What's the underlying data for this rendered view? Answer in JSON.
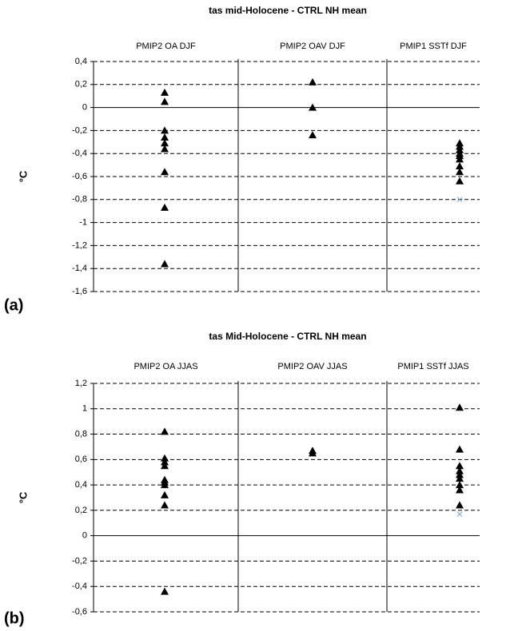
{
  "chart_data": [
    {
      "type": "strip",
      "title": "tas mid-Holocene - CTRL NH  mean",
      "panel_label": "(a)",
      "ylabel": "°C",
      "categories": [
        "PMIP2 OA DJF",
        "PMIP2 OAV DJF",
        "PMIP1 SSTf DJF"
      ],
      "series": [
        {
          "marker": "triangle",
          "color": "#000000",
          "values": [
            [
              0.13,
              0.05,
              -0.2,
              -0.26,
              -0.31,
              -0.36,
              -0.56,
              -0.87,
              -1.36
            ],
            [
              0.22,
              0.0,
              -0.24
            ],
            [
              -0.31,
              -0.34,
              -0.37,
              -0.4,
              -0.42,
              -0.45,
              -0.51,
              -0.56,
              -0.64
            ]
          ]
        },
        {
          "marker": "x",
          "color": "#6fa8dc",
          "values": [
            [],
            [],
            [
              -0.8
            ]
          ]
        }
      ],
      "ylim": [
        -1.6,
        0.4
      ],
      "yticks": [
        {
          "value": -1.6,
          "label": "-1,6"
        },
        {
          "value": -1.4,
          "label": "-1,4"
        },
        {
          "value": -1.2,
          "label": "-1,2"
        },
        -1,
        {
          "value": -0.8,
          "label": "-0,8"
        },
        {
          "value": -0.6,
          "label": "-0,6"
        },
        {
          "value": -0.4,
          "label": "-0,4"
        },
        {
          "value": -0.2,
          "label": "-0,2"
        },
        0,
        {
          "value": 0.2,
          "label": "0,2"
        },
        {
          "value": 0.4,
          "label": "0,4"
        }
      ],
      "grid": true
    },
    {
      "type": "strip",
      "title": "tas Mid-Holocene - CTRL NH mean",
      "panel_label": "(b)",
      "ylabel": "°C",
      "categories": [
        "PMIP2 OA JJAS",
        "PMIP2 OAV JJAS",
        "PMIP1 SSTf JJAS"
      ],
      "series": [
        {
          "marker": "triangle",
          "color": "#000000",
          "values": [
            [
              0.82,
              0.61,
              0.58,
              0.55,
              0.44,
              0.42,
              0.4,
              0.32,
              0.24,
              -0.44
            ],
            [
              0.67,
              0.65
            ],
            [
              1.01,
              0.68,
              0.55,
              0.51,
              0.48,
              0.45,
              0.4,
              0.36,
              0.24
            ]
          ]
        },
        {
          "marker": "x",
          "color": "#6fa8dc",
          "values": [
            [],
            [],
            [
              0.17
            ]
          ]
        }
      ],
      "ylim": [
        -0.6,
        1.2
      ],
      "yticks": [
        {
          "value": -0.6,
          "label": "-0,6"
        },
        {
          "value": -0.4,
          "label": "-0,4"
        },
        {
          "value": -0.2,
          "label": "-0,2"
        },
        0,
        {
          "value": 0.2,
          "label": "0,2"
        },
        {
          "value": 0.4,
          "label": "0,4"
        },
        {
          "value": 0.6,
          "label": "0,6"
        },
        {
          "value": 0.8,
          "label": "0,8"
        },
        1,
        {
          "value": 1.2,
          "label": "1,2"
        }
      ],
      "grid": true
    }
  ]
}
